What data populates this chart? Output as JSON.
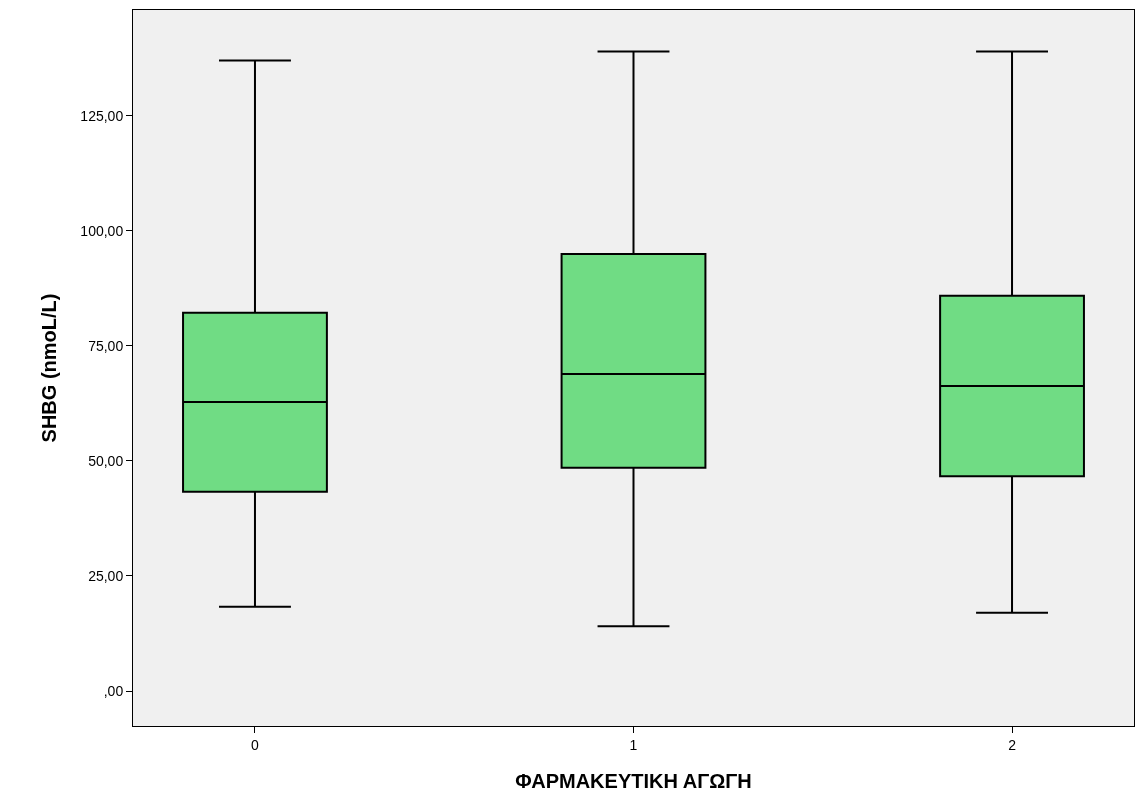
{
  "chart_data": {
    "type": "box",
    "xlabel": "ΦΑΡΜΑΚΕΥΤΙΚΗ ΑΓΩΓΗ",
    "ylabel": "SHBG (nmoL/L)",
    "categories": [
      "0",
      "1",
      "2"
    ],
    "color": "#70dc84",
    "boxes": [
      {
        "low": 18.3,
        "q1": 43.3,
        "median": 62.8,
        "q3": 82.2,
        "high": 137
      },
      {
        "low": 14.1,
        "q1": 48.5,
        "median": 68.9,
        "q3": 95,
        "high": 139
      },
      {
        "low": 17,
        "q1": 46.7,
        "median": 66.3,
        "q3": 85.9,
        "high": 139
      }
    ],
    "ylim": [
      -7.6,
      148
    ],
    "yticks": [
      {
        "value": 0,
        "label": ",00"
      },
      {
        "value": 25,
        "label": "25,00"
      },
      {
        "value": 50,
        "label": "50,00"
      },
      {
        "value": 75,
        "label": "75,00"
      },
      {
        "value": 100,
        "label": "100,00"
      },
      {
        "value": 125,
        "label": "125,00"
      }
    ],
    "grid": false
  }
}
